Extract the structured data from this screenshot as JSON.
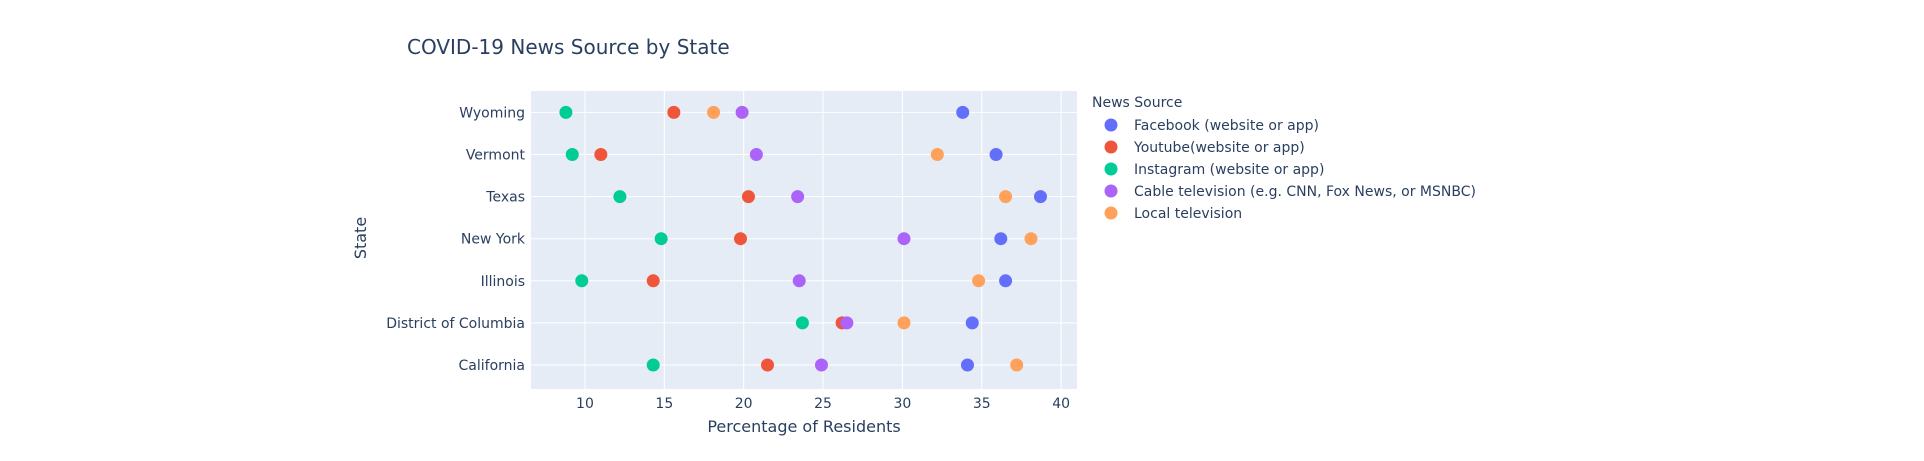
{
  "chart_data": {
    "type": "scatter",
    "title": "COVID-19 News Source by State",
    "xlabel": "Percentage of Residents",
    "ylabel": "State",
    "xlim": [
      6.6,
      41
    ],
    "xticks": [
      10,
      15,
      20,
      25,
      30,
      35,
      40
    ],
    "categories": [
      "California",
      "District of Columbia",
      "Illinois",
      "New York",
      "Texas",
      "Vermont",
      "Wyoming"
    ],
    "grid": true,
    "legend": {
      "title": "News Source",
      "placement": "right"
    },
    "series": [
      {
        "name": "Facebook (website or app)",
        "color": "#636efa",
        "values": [
          34.1,
          34.4,
          36.5,
          36.2,
          38.7,
          35.9,
          33.8
        ]
      },
      {
        "name": "Youtube(website or app)",
        "color": "#EF553B",
        "values": [
          21.5,
          26.2,
          14.3,
          19.8,
          20.3,
          11.0,
          15.6
        ]
      },
      {
        "name": "Instagram (website or app)",
        "color": "#00cc96",
        "values": [
          14.3,
          23.7,
          9.8,
          14.8,
          12.2,
          9.2,
          8.8
        ]
      },
      {
        "name": "Cable television (e.g. CNN, Fox News, or MSNBC)",
        "color": "#ab63fa",
        "values": [
          24.9,
          26.5,
          23.5,
          30.1,
          23.4,
          20.8,
          19.9
        ]
      },
      {
        "name": "Local television",
        "color": "#FFA15A",
        "values": [
          37.2,
          30.1,
          34.8,
          38.1,
          36.5,
          32.2,
          18.1
        ]
      }
    ]
  }
}
